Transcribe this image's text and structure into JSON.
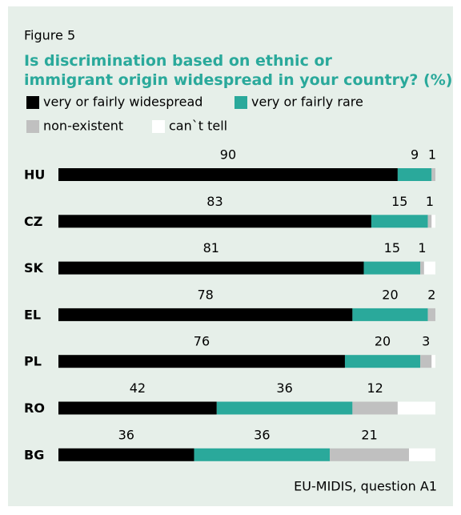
{
  "chart_data": {
    "type": "stacked-bar-horizontal",
    "figure_label": "Figure 5",
    "title": "Is discrimination based on ethnic or immigrant origin widespread in your country? (%)",
    "source": "EU-MIDIS, question A1",
    "categories": [
      "HU",
      "CZ",
      "SK",
      "EL",
      "PL",
      "RO",
      "BG"
    ],
    "xlim": [
      0,
      100
    ],
    "series": [
      {
        "name": "very or fairly widespread",
        "color": "#000000",
        "values": [
          90,
          83,
          81,
          78,
          76,
          42,
          36
        ]
      },
      {
        "name": "very or fairly rare",
        "color": "#2aa99b",
        "values": [
          9,
          15,
          15,
          20,
          20,
          36,
          36
        ]
      },
      {
        "name": "non-existent",
        "color": "#c0c0c0",
        "values": [
          1,
          1,
          1,
          2,
          3,
          12,
          21
        ]
      },
      {
        "name": "can`t tell",
        "color": "#ffffff",
        "values": [
          0,
          1,
          3,
          0,
          1,
          10,
          7
        ]
      }
    ]
  }
}
